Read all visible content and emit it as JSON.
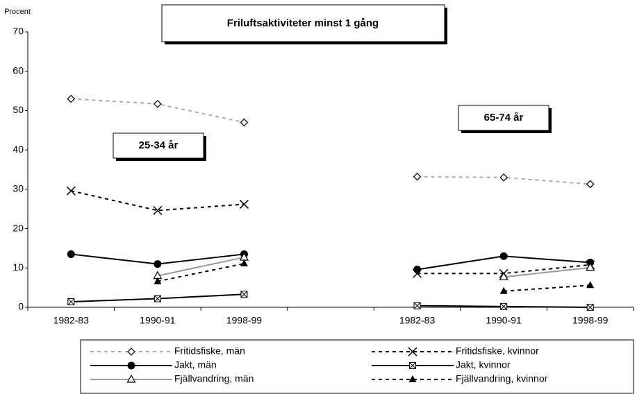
{
  "chart_data": {
    "type": "line",
    "title": "Friluftsaktiviteter minst 1 gång",
    "y_label": "Procent",
    "annotations": [
      "25-34 år",
      "65-74 år"
    ],
    "categories": [
      "1982-83",
      "1990-91",
      "1998-99",
      null,
      "1982-83",
      "1990-91",
      "1998-99"
    ],
    "ylim": [
      0,
      70
    ],
    "yticks": [
      0,
      10,
      20,
      30,
      40,
      50,
      60,
      70
    ],
    "grid": false,
    "series": [
      {
        "name": "Fritidsfiske, män",
        "color": "#aaaaaa",
        "dashed": true,
        "marker": "diamond",
        "values": [
          53,
          51.7,
          47,
          null,
          33.2,
          33,
          31.3
        ]
      },
      {
        "name": "Fritidsfiske, kvinnor",
        "color": "#000000",
        "dashed": true,
        "marker": "x",
        "values": [
          29.6,
          24.6,
          26.2,
          null,
          8.6,
          8.6,
          10.8
        ]
      },
      {
        "name": "Jakt, män",
        "color": "#000000",
        "dashed": false,
        "marker": "circle",
        "values": [
          13.5,
          11,
          13.5,
          null,
          9.6,
          13,
          11.4
        ]
      },
      {
        "name": "Jakt, kvinnor",
        "color": "#000000",
        "dashed": false,
        "marker": "boxx",
        "values": [
          1.4,
          2.2,
          3.3,
          null,
          0.4,
          0.2,
          0
        ]
      },
      {
        "name": "Fjällvandring, män",
        "color": "#999999",
        "dashed": false,
        "marker": "triangle-open",
        "values": [
          null,
          8,
          12.7,
          null,
          null,
          7.7,
          10.1
        ]
      },
      {
        "name": "Fjällvandring, kvinnor",
        "color": "#000000",
        "dashed": true,
        "marker": "triangle",
        "values": [
          null,
          6.6,
          11.1,
          null,
          null,
          4.1,
          5.6
        ]
      }
    ]
  }
}
